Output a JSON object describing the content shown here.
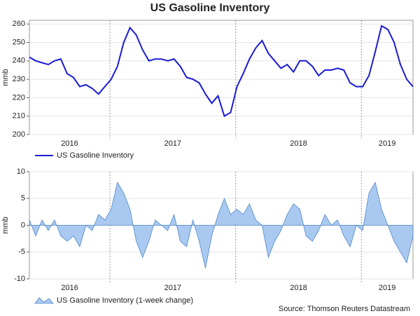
{
  "chart_data": [
    {
      "type": "line",
      "title": "US Gasoline Inventory",
      "ylabel": "mmb",
      "xlim": [
        2016.36,
        2019.41
      ],
      "xticks": [
        2017,
        2018,
        2019
      ],
      "year_labels": [
        "2016",
        "2017",
        "2018",
        "2019"
      ],
      "ylim": [
        200,
        262
      ],
      "yticks": [
        200,
        210,
        220,
        230,
        240,
        250,
        260
      ],
      "grid": true,
      "x": [
        2016.36,
        2016.41,
        2016.46,
        2016.51,
        2016.56,
        2016.61,
        2016.66,
        2016.71,
        2016.76,
        2016.81,
        2016.86,
        2016.91,
        2016.96,
        2017.01,
        2017.06,
        2017.11,
        2017.16,
        2017.21,
        2017.26,
        2017.31,
        2017.36,
        2017.41,
        2017.46,
        2017.51,
        2017.56,
        2017.61,
        2017.66,
        2017.71,
        2017.76,
        2017.81,
        2017.86,
        2017.91,
        2017.96,
        2018.01,
        2018.06,
        2018.11,
        2018.16,
        2018.21,
        2018.26,
        2018.31,
        2018.36,
        2018.41,
        2018.46,
        2018.51,
        2018.56,
        2018.61,
        2018.66,
        2018.71,
        2018.76,
        2018.81,
        2018.86,
        2018.91,
        2018.96,
        2019.01,
        2019.06,
        2019.11,
        2019.16,
        2019.21,
        2019.26,
        2019.31,
        2019.36,
        2019.41
      ],
      "series": [
        {
          "name": "US Gasoline Inventory",
          "color": "#1a1ad6",
          "values": [
            242,
            240,
            239,
            238,
            240,
            241,
            233,
            231,
            226,
            227,
            225,
            222,
            226,
            230,
            237,
            250,
            258,
            254,
            246,
            240,
            241,
            241,
            240,
            241,
            237,
            231,
            230,
            228,
            222,
            217,
            221,
            210,
            212,
            226,
            233,
            241,
            247,
            251,
            244,
            240,
            236,
            238,
            234,
            240,
            240,
            237,
            232,
            235,
            235,
            236,
            235,
            228,
            226,
            226,
            232,
            245,
            259,
            257,
            250,
            238,
            230,
            226
          ]
        }
      ]
    },
    {
      "type": "area",
      "ylabel": "mmb",
      "xlim": [
        2016.36,
        2019.41
      ],
      "xticks": [
        2017,
        2018,
        2019
      ],
      "year_labels": [
        "2016",
        "2017",
        "2018",
        "2019"
      ],
      "ylim": [
        -10,
        10
      ],
      "yticks": [
        -10,
        -5,
        0,
        5,
        10
      ],
      "grid": true,
      "source": "Source: Thomson Reuters Datastream",
      "x": [
        2016.36,
        2016.41,
        2016.46,
        2016.51,
        2016.56,
        2016.61,
        2016.66,
        2016.71,
        2016.76,
        2016.81,
        2016.86,
        2016.91,
        2016.96,
        2017.01,
        2017.06,
        2017.11,
        2017.16,
        2017.21,
        2017.26,
        2017.31,
        2017.36,
        2017.41,
        2017.46,
        2017.51,
        2017.56,
        2017.61,
        2017.66,
        2017.71,
        2017.76,
        2017.81,
        2017.86,
        2017.91,
        2017.96,
        2018.01,
        2018.06,
        2018.11,
        2018.16,
        2018.21,
        2018.26,
        2018.31,
        2018.36,
        2018.41,
        2018.46,
        2018.51,
        2018.56,
        2018.61,
        2018.66,
        2018.71,
        2018.76,
        2018.81,
        2018.86,
        2018.91,
        2018.96,
        2019.01,
        2019.06,
        2019.11,
        2019.16,
        2019.21,
        2019.26,
        2019.31,
        2019.36,
        2019.41
      ],
      "series": [
        {
          "name": "US Gasoline Inventory (1-week change)",
          "color": "#a9c9f0",
          "values": [
            1,
            -2,
            1,
            -1,
            1,
            -2,
            -3,
            -2,
            -4,
            0,
            -1,
            2,
            1,
            3,
            8,
            6,
            3,
            -3,
            -6,
            -3,
            1,
            0,
            -1,
            2,
            -3,
            -4,
            1,
            -3,
            -8,
            -2,
            2,
            5,
            2,
            3,
            2,
            4,
            1,
            0,
            -6,
            -3,
            -1,
            2,
            4,
            3,
            -2,
            -3,
            -1,
            2,
            0,
            1,
            -2,
            -4,
            0,
            -1,
            6,
            8,
            3,
            0,
            -3,
            -5,
            -7,
            -2
          ]
        }
      ]
    }
  ]
}
